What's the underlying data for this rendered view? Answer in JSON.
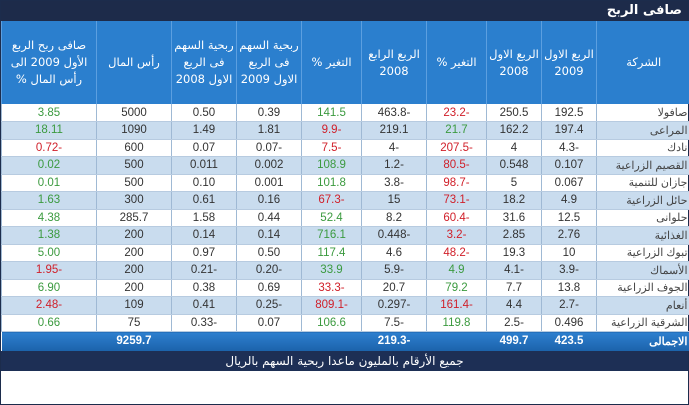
{
  "title": "صافى الربح",
  "headers": [
    "الشركة",
    "الربع الاول 2009",
    "الربع الاول 2008",
    "التغير %",
    "الربع الرابع 2008",
    "التغير %",
    "ربحية السهم فى الربع الاول 2009",
    "ربحية السهم فى الربع الاول 2008",
    "رأس المال",
    "صافى ربح الربع الأول 2009 الى رأس المال %"
  ],
  "rows": [
    [
      "صافولا",
      "192.5",
      "250.5",
      "-23.2",
      "-463.8",
      "141.5",
      "0.39",
      "0.50",
      "5000",
      "3.85"
    ],
    [
      "المراعى",
      "197.4",
      "162.2",
      "21.7",
      "219.1",
      "-9.9",
      "1.81",
      "1.49",
      "1090",
      "18.11"
    ],
    [
      "نادك",
      "-4.3",
      "4",
      "-207.5",
      "-4",
      "-7.5",
      "-0.07",
      "0.07",
      "600",
      "-0.72"
    ],
    [
      "القصيم الزراعية",
      "0.107",
      "0.548",
      "-80.5",
      "-1.2",
      "108.9",
      "0.002",
      "0.011",
      "500",
      "0.02"
    ],
    [
      "جازان للتنمية",
      "0.067",
      "5",
      "-98.7",
      "-3.8",
      "101.8",
      "0.001",
      "0.10",
      "500",
      "0.01"
    ],
    [
      "حائل الزراعية",
      "4.9",
      "18.2",
      "-73.1",
      "15",
      "-67.3",
      "0.16",
      "0.61",
      "300",
      "1.63"
    ],
    [
      "حلوانى",
      "12.5",
      "31.6",
      "-60.4",
      "8.2",
      "52.4",
      "0.44",
      "1.58",
      "285.7",
      "4.38"
    ],
    [
      "الغذائية",
      "2.76",
      "2.85",
      "-3.2",
      "-0.448",
      "716.1",
      "0.14",
      "0.14",
      "200",
      "1.38"
    ],
    [
      "تبوك الزراعية",
      "10",
      "19.3",
      "-48.2",
      "4.6",
      "117.4",
      "0.50",
      "0.97",
      "200",
      "5.00"
    ],
    [
      "الأسماك",
      "-3.9",
      "-4.1",
      "4.9",
      "-5.9",
      "33.9",
      "-0.20",
      "-0.21",
      "200",
      "-1.95"
    ],
    [
      "الجوف الزراعية",
      "13.8",
      "7.7",
      "79.2",
      "20.7",
      "-33.3",
      "0.69",
      "0.38",
      "200",
      "6.90"
    ],
    [
      "أنعام",
      "-2.7",
      "4.4",
      "-161.4",
      "-0.297",
      "-809.1",
      "-0.25",
      "0.41",
      "109",
      "-2.48"
    ],
    [
      "الشرقية الزراعية",
      "0.496",
      "-2.5",
      "119.8",
      "-7.5",
      "106.6",
      "0.07",
      "-0.33",
      "75",
      "0.66"
    ]
  ],
  "total": [
    "الاجمالى",
    "423.5",
    "499.7",
    "",
    "-219.3",
    "",
    "",
    "",
    "9259.7",
    ""
  ],
  "footer": "جميع الأرقام بالمليون ماعدا ربحية السهم بالريال",
  "colors": {
    "header": "#2b7fce",
    "title_bar": "#1d2b4a",
    "positive": "#3b9a3f",
    "negative": "#d0202a",
    "alt_row": "#c9dcee"
  }
}
